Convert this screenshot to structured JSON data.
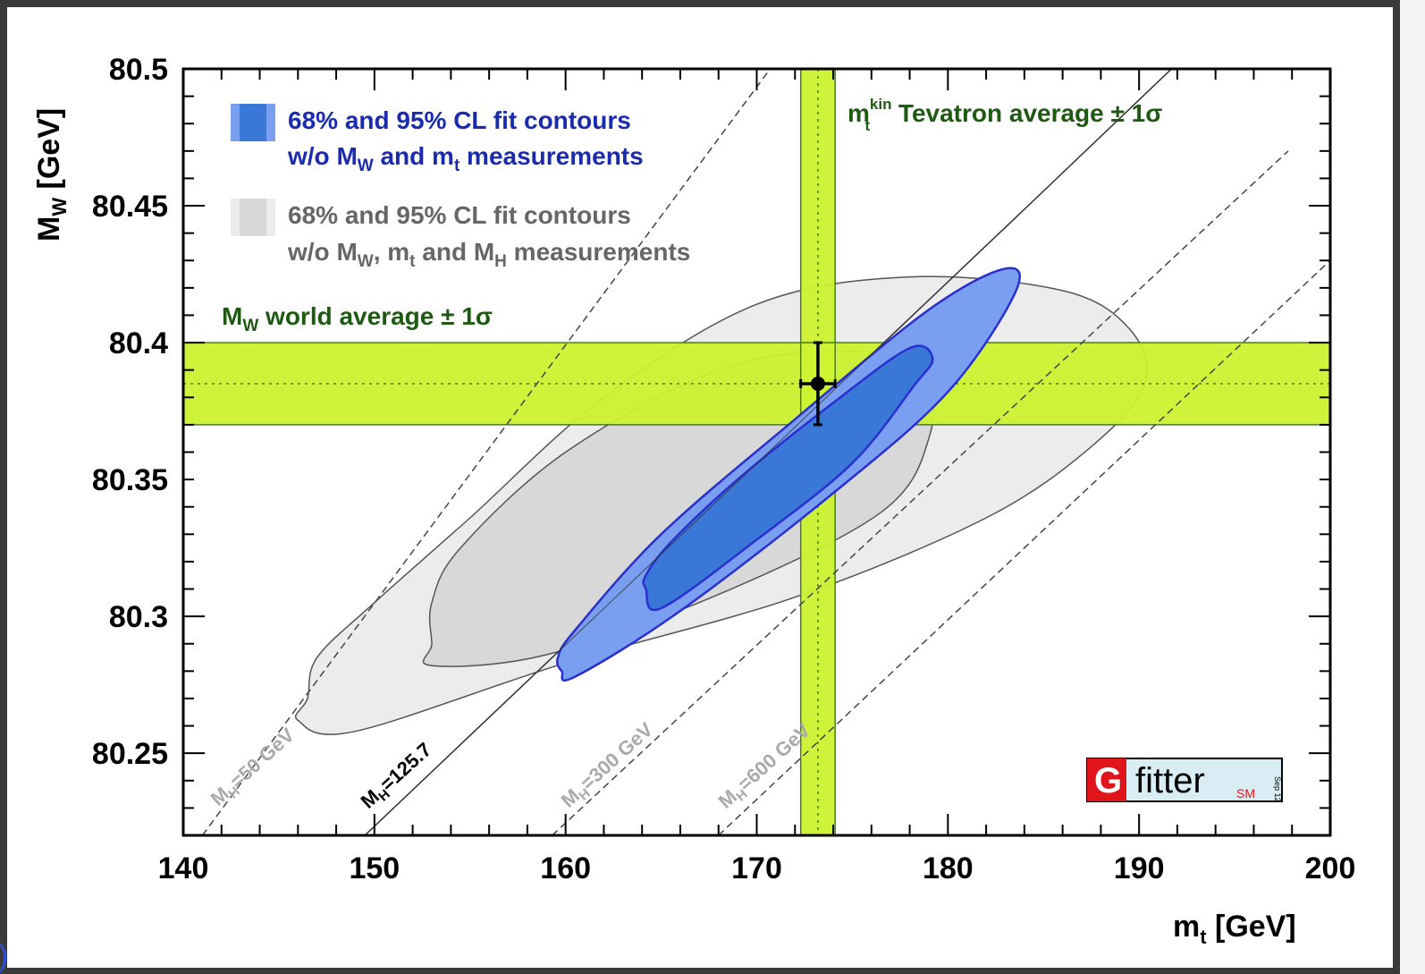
{
  "colors": {
    "band_fill": "#ccf230",
    "band_line": "#4a7a2a",
    "blue_outer": "#7a9ff0",
    "blue_inner": "#3a78d8",
    "blue_edge": "#2a2fd0",
    "grey_outer": "#ececec",
    "grey_inner": "#d8d8d8",
    "grey_edge": "#555555",
    "frame": "#3a3a3a"
  },
  "chart_data": {
    "type": "contour",
    "xlabel": "m_t [GeV]",
    "ylabel": "M_W [GeV]",
    "xlim": [
      140,
      200
    ],
    "ylim": [
      80.22,
      80.5
    ],
    "x_ticks": [
      "140",
      "150",
      "160",
      "170",
      "180",
      "190",
      "200"
    ],
    "y_ticks": [
      "80.25",
      "80.3",
      "80.35",
      "80.4",
      "80.45",
      "80.5"
    ],
    "y_tick_values": [
      80.25,
      80.3,
      80.35,
      80.4,
      80.45,
      80.5
    ],
    "x_tick_values": [
      140,
      150,
      160,
      170,
      180,
      190,
      200
    ],
    "measurement": {
      "mt": 173.2,
      "mt_err": 0.9,
      "mw": 80.385,
      "mw_err": 0.015
    },
    "mw_band": {
      "center": 80.385,
      "low": 80.37,
      "high": 80.4,
      "label": "M_W world average ± 1σ"
    },
    "mt_band": {
      "center": 173.2,
      "low": 172.3,
      "high": 174.1,
      "label": "m_t^kin Tevatron average ± 1σ"
    },
    "legend": [
      {
        "text_line1": "68% and 95% CL fit contours",
        "text_line2": "w/o M_W and m_t measurements",
        "style": "blue"
      },
      {
        "text_line1": "68% and 95% CL fit contours",
        "text_line2": "w/o M_W, m_t and M_H measurements",
        "style": "grey"
      }
    ],
    "higgs_lines": [
      {
        "label": "M_H=50 GeV",
        "mh": 50,
        "points": [
          [
            141.0,
            80.22
          ],
          [
            170.7,
            80.5
          ]
        ]
      },
      {
        "label": "M_H=125.7",
        "mh": 125.7,
        "points": [
          [
            149.5,
            80.22
          ],
          [
            184.2,
            80.45
          ],
          [
            191.7,
            80.5
          ]
        ]
      },
      {
        "label": "M_H=300 GeV",
        "mh": 300,
        "points": [
          [
            159.3,
            80.22
          ],
          [
            197.8,
            80.47
          ]
        ]
      },
      {
        "label": "M_H=600 GeV",
        "mh": 600,
        "points": [
          [
            168.0,
            80.22
          ],
          [
            200.0,
            80.43
          ]
        ]
      }
    ],
    "grey_95_contour": [
      [
        146.5,
        80.27
      ],
      [
        146.0,
        80.262
      ],
      [
        149.0,
        80.258
      ],
      [
        160.0,
        80.283
      ],
      [
        172.0,
        80.307
      ],
      [
        182.0,
        80.336
      ],
      [
        187.5,
        80.362
      ],
      [
        190.3,
        80.385
      ],
      [
        189.5,
        80.405
      ],
      [
        186.0,
        80.419
      ],
      [
        178.0,
        80.424
      ],
      [
        170.0,
        80.414
      ],
      [
        162.0,
        80.38
      ],
      [
        155.0,
        80.336
      ],
      [
        150.0,
        80.305
      ],
      [
        147.0,
        80.285
      ]
    ],
    "grey_68_contour": [
      [
        153.0,
        80.29
      ],
      [
        153.0,
        80.282
      ],
      [
        159.0,
        80.286
      ],
      [
        168.0,
        80.308
      ],
      [
        176.5,
        80.338
      ],
      [
        179.0,
        80.365
      ],
      [
        178.8,
        80.388
      ],
      [
        175.0,
        80.397
      ],
      [
        168.0,
        80.39
      ],
      [
        160.0,
        80.36
      ],
      [
        154.5,
        80.325
      ],
      [
        153.0,
        80.305
      ]
    ],
    "blue_95_contour": [
      [
        159.8,
        80.28
      ],
      [
        160.5,
        80.278
      ],
      [
        166.0,
        80.302
      ],
      [
        174.0,
        80.345
      ],
      [
        180.0,
        80.382
      ],
      [
        183.5,
        80.418
      ],
      [
        183.0,
        80.427
      ],
      [
        179.0,
        80.412
      ],
      [
        172.0,
        80.372
      ],
      [
        165.0,
        80.33
      ],
      [
        160.5,
        80.295
      ],
      [
        159.6,
        80.285
      ]
    ],
    "blue_68_contour": [
      [
        164.2,
        80.31
      ],
      [
        165.0,
        80.303
      ],
      [
        170.0,
        80.328
      ],
      [
        175.0,
        80.356
      ],
      [
        178.2,
        80.384
      ],
      [
        179.2,
        80.394
      ],
      [
        178.0,
        80.398
      ],
      [
        174.0,
        80.378
      ],
      [
        169.0,
        80.35
      ],
      [
        165.5,
        80.327
      ],
      [
        164.2,
        80.315
      ]
    ]
  },
  "ylabel_parts": {
    "main": "M",
    "sub": "W",
    "unit": " [GeV]"
  },
  "xlabel_parts": {
    "main": "m",
    "sub": "t",
    "unit": " [GeV]"
  },
  "legend_text": {
    "blue_line1": "68% and 95% CL fit contours",
    "blue_line2_a": "w/o M",
    "blue_line2_sub1": "W",
    "blue_line2_b": " and m",
    "blue_line2_sub2": "t",
    "blue_line2_c": " measurements",
    "grey_line1": "68% and 95% CL fit contours",
    "grey_line2_a": "w/o M",
    "grey_line2_sub1": "W",
    "grey_line2_b": ", m",
    "grey_line2_sub2": "t",
    "grey_line2_c": " and M",
    "grey_line2_sub3": "H",
    "grey_line2_d": " measurements"
  },
  "band_text": {
    "mw_main": "M",
    "mw_sub": "W",
    "mw_rest": " world average ± 1σ",
    "mt_main": "m",
    "mt_sup": "kin",
    "mt_sub": "t",
    "mt_rest": " Tevatron average ± 1σ"
  },
  "higgs_text": {
    "l50": "M",
    "l50_sub": "H",
    "l50_rest": "=50 GeV",
    "l125": "M",
    "l125_sub": "H",
    "l125_rest": "=125.7",
    "l300": "M",
    "l300_sub": "H",
    "l300_rest": "=300 GeV",
    "l600": "M",
    "l600_sub": "H",
    "l600_rest": "=600 GeV"
  },
  "logo": {
    "letter": "G",
    "word": "fitter",
    "tag": "SM",
    "date": "Sep 12"
  },
  "edge_glyph": ")"
}
